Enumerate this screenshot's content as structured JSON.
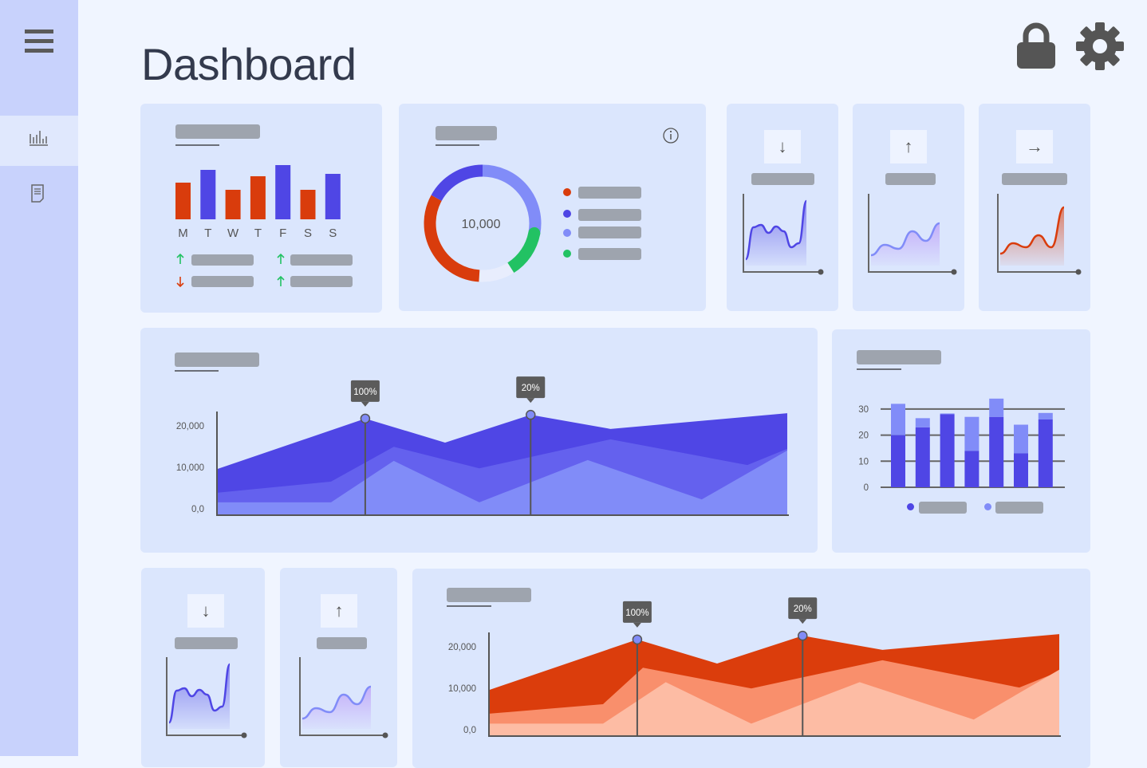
{
  "header": {
    "title": "Dashboard",
    "icons": [
      "lock-icon",
      "gear-icon"
    ]
  },
  "sidebar": {
    "items": [
      {
        "icon": "menu-icon"
      },
      {
        "icon": "bar-chart-icon",
        "active": true
      },
      {
        "icon": "document-icon"
      }
    ]
  },
  "colors": {
    "red": "#d93c0c",
    "blue": "#4f46e5",
    "periwinkle": "#818cf8",
    "green": "#22c263",
    "light_red": "#f98f6c",
    "pale_red": "#fdbca4",
    "purple_fill": "#c4a5fa"
  },
  "chart_data": [
    {
      "id": "weekly-bars",
      "type": "bar",
      "categories": [
        "M",
        "T",
        "W",
        "T",
        "F",
        "S",
        "S"
      ],
      "values": [
        46,
        62,
        37,
        54,
        68,
        37,
        57
      ],
      "colors": [
        "#d93c0c",
        "#4f46e5",
        "#d93c0c",
        "#d93c0c",
        "#4f46e5",
        "#d93c0c",
        "#4f46e5"
      ],
      "trends": [
        "up",
        "up",
        "down",
        "up"
      ]
    },
    {
      "id": "donut",
      "type": "pie",
      "center_label": "10,000",
      "values": [
        28,
        13,
        10,
        32,
        17
      ],
      "colors": [
        "#818cf8",
        "#22c263",
        "#e8edfd",
        "#d93c0c",
        "#4f46e5"
      ],
      "legend_colors": [
        "#d93c0c",
        "#4f46e5",
        "#818cf8",
        "#22c263"
      ]
    },
    {
      "id": "spark-1",
      "type": "area",
      "values": [
        16,
        56,
        59,
        49,
        57,
        51,
        31,
        36,
        89
      ],
      "color": "#4f46e5",
      "arrow": "↓"
    },
    {
      "id": "spark-2",
      "type": "area",
      "values": [
        21,
        34,
        29,
        51,
        39,
        61
      ],
      "color": "#818cf8",
      "arrow": "↑"
    },
    {
      "id": "spark-3",
      "type": "area",
      "values": [
        23,
        36,
        31,
        46,
        31,
        81
      ],
      "color": "#d93c0c",
      "arrow": "→"
    },
    {
      "id": "area-blue",
      "type": "area",
      "ylim": [
        0,
        24000
      ],
      "yticks": [
        "0,0",
        "10,000",
        "20,000"
      ],
      "ytick_values": [
        0,
        10000,
        20000
      ],
      "series": [
        {
          "x": [
            0,
            26,
            40,
            55,
            69,
            100
          ],
          "values": [
            11100,
            23300,
            17500,
            24200,
            20800,
            24600
          ],
          "color": "#4f46e5"
        },
        {
          "x": [
            0,
            20,
            31,
            46,
            69,
            93,
            100
          ],
          "values": [
            5400,
            8100,
            16500,
            11300,
            18300,
            12100,
            16000
          ],
          "color": "#6461ee"
        },
        {
          "x": [
            0,
            20,
            31,
            46,
            65,
            85,
            100
          ],
          "values": [
            3100,
            3100,
            13100,
            3100,
            13300,
            3800,
            15600
          ],
          "color": "#818cf8"
        }
      ],
      "markers": [
        {
          "x": 26,
          "label": "100%"
        },
        {
          "x": 55,
          "label": "20%"
        }
      ]
    },
    {
      "id": "stacked-bars",
      "type": "bar",
      "ylim": [
        0,
        30
      ],
      "yticks": [
        "0",
        "10",
        "20",
        "30"
      ],
      "ytick_values": [
        0,
        10,
        20,
        30
      ],
      "series": [
        {
          "values": [
            20,
            23,
            28,
            14,
            27,
            13,
            26
          ],
          "color": "#4f46e5"
        },
        {
          "values": [
            12,
            3.5,
            0.3,
            13,
            7,
            11,
            2.5
          ],
          "color": "#818cf8"
        }
      ]
    },
    {
      "id": "spark-4",
      "type": "area",
      "values": [
        16,
        56,
        59,
        49,
        57,
        51,
        31,
        36,
        89
      ],
      "color": "#4f46e5",
      "arrow": "↓"
    },
    {
      "id": "spark-5",
      "type": "area",
      "values": [
        21,
        34,
        29,
        51,
        39,
        61
      ],
      "color": "#818cf8",
      "arrow": "↑"
    },
    {
      "id": "area-red",
      "type": "area",
      "ylim": [
        0,
        24000
      ],
      "yticks": [
        "0,0",
        "10,000",
        "20,000"
      ],
      "ytick_values": [
        0,
        10000,
        20000
      ],
      "series": [
        {
          "x": [
            0,
            26,
            40,
            55,
            69,
            100
          ],
          "values": [
            11100,
            23300,
            17500,
            24200,
            20800,
            24600
          ],
          "color": "#db3d0c"
        },
        {
          "x": [
            0,
            20,
            27,
            46,
            69,
            93,
            100
          ],
          "values": [
            5400,
            7700,
            16500,
            11500,
            18300,
            11700,
            15600
          ],
          "color": "#f98f6c"
        },
        {
          "x": [
            0,
            20,
            31,
            46,
            65,
            85,
            100
          ],
          "values": [
            3000,
            3000,
            13000,
            3000,
            13000,
            4000,
            16000
          ],
          "color": "#fdbca4"
        }
      ],
      "markers": [
        {
          "x": 26,
          "label": "100%"
        },
        {
          "x": 55,
          "label": "20%"
        }
      ]
    }
  ]
}
